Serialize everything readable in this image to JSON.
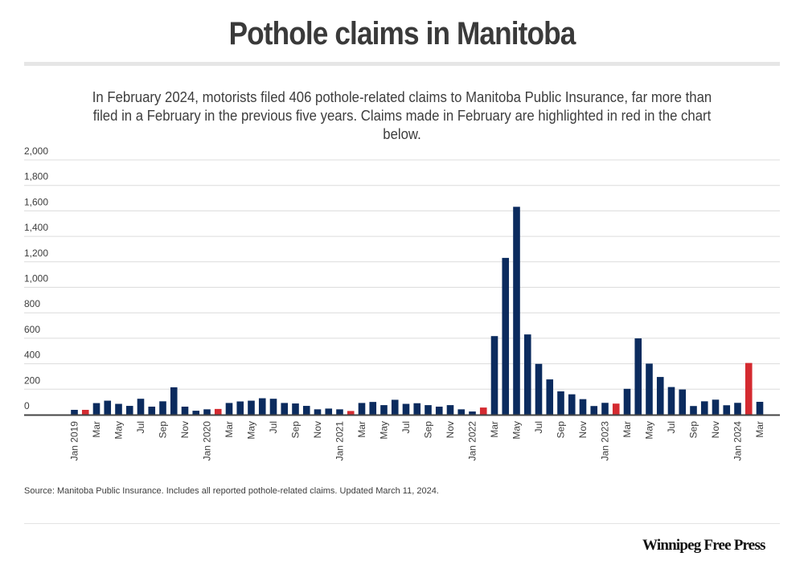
{
  "header": {
    "title": "Pothole claims in Manitoba",
    "subtitle_line1": "In February 2024, motorists filed 406 pothole-related claims to Manitoba Public Insurance, far more than",
    "subtitle_line2": "filed in a February in the previous five years. Claims made in February are highlighted in red in the chart below."
  },
  "footer": {
    "source": "Source: Manitoba Public Insurance. Includes all reported pothole-related claims. Updated March 11, 2024.",
    "brand": "Winnipeg Free Press"
  },
  "colors": {
    "default_bar": "#0b2b5e",
    "highlight_bar": "#d42a30",
    "gridline": "#dcdcdc",
    "axis": "#444444"
  },
  "chart_data": {
    "type": "bar",
    "title": "Pothole claims in Manitoba",
    "xlabel": "",
    "ylabel": "",
    "ylim": [
      0,
      2000
    ],
    "yticks": [
      0,
      200,
      400,
      600,
      800,
      1000,
      1200,
      1400,
      1600,
      1800,
      2000
    ],
    "ytick_labels": [
      "0",
      "200",
      "400",
      "600",
      "800",
      "1,000",
      "1,200",
      "1,400",
      "1,600",
      "1,800",
      "2,000"
    ],
    "grid": true,
    "legend": "none",
    "highlight_rule": "February months highlighted in red",
    "categories": [
      "Jan 2019",
      "Feb 2019",
      "Mar 2019",
      "Apr 2019",
      "May 2019",
      "Jun 2019",
      "Jul 2019",
      "Aug 2019",
      "Sep 2019",
      "Oct 2019",
      "Nov 2019",
      "Dec 2019",
      "Jan 2020",
      "Feb 2020",
      "Mar 2020",
      "Apr 2020",
      "May 2020",
      "Jun 2020",
      "Jul 2020",
      "Aug 2020",
      "Sep 2020",
      "Oct 2020",
      "Nov 2020",
      "Dec 2020",
      "Jan 2021",
      "Feb 2021",
      "Mar 2021",
      "Apr 2021",
      "May 2021",
      "Jun 2021",
      "Jul 2021",
      "Aug 2021",
      "Sep 2021",
      "Oct 2021",
      "Nov 2021",
      "Dec 2021",
      "Jan 2022",
      "Feb 2022",
      "Mar 2022",
      "Apr 2022",
      "May 2022",
      "Jun 2022",
      "Jul 2022",
      "Aug 2022",
      "Sep 2022",
      "Oct 2022",
      "Nov 2022",
      "Dec 2022",
      "Jan 2023",
      "Feb 2023",
      "Mar 2023",
      "Apr 2023",
      "May 2023",
      "Jun 2023",
      "Jul 2023",
      "Aug 2023",
      "Sep 2023",
      "Oct 2023",
      "Nov 2023",
      "Dec 2023",
      "Jan 2024",
      "Feb 2024",
      "Mar 2024"
    ],
    "values": [
      38,
      38,
      91,
      110,
      85,
      69,
      125,
      63,
      105,
      215,
      63,
      31,
      42,
      45,
      92,
      104,
      110,
      129,
      125,
      92,
      88,
      69,
      42,
      48,
      42,
      29,
      92,
      100,
      75,
      117,
      85,
      90,
      75,
      63,
      75,
      42,
      25,
      56,
      617,
      1231,
      1632,
      630,
      399,
      277,
      183,
      160,
      122,
      68,
      93,
      87,
      203,
      599,
      401,
      296,
      217,
      198,
      68,
      105,
      118,
      74,
      93,
      406,
      101
    ],
    "highlighted": [
      false,
      true,
      false,
      false,
      false,
      false,
      false,
      false,
      false,
      false,
      false,
      false,
      false,
      true,
      false,
      false,
      false,
      false,
      false,
      false,
      false,
      false,
      false,
      false,
      false,
      true,
      false,
      false,
      false,
      false,
      false,
      false,
      false,
      false,
      false,
      false,
      false,
      true,
      false,
      false,
      false,
      false,
      false,
      false,
      false,
      false,
      false,
      false,
      false,
      true,
      false,
      false,
      false,
      false,
      false,
      false,
      false,
      false,
      false,
      false,
      false,
      true,
      false
    ],
    "xtick_labels": [
      "Jan 2019",
      "",
      "Mar",
      "",
      "May",
      "",
      "Jul",
      "",
      "Sep",
      "",
      "Nov",
      "",
      "Jan 2020",
      "",
      "Mar",
      "",
      "May",
      "",
      "Jul",
      "",
      "Sep",
      "",
      "Nov",
      "",
      "Jan 2021",
      "",
      "Mar",
      "",
      "May",
      "",
      "Jul",
      "",
      "Sep",
      "",
      "Nov",
      "",
      "Jan 2022",
      "",
      "Mar",
      "",
      "May",
      "",
      "Jul",
      "",
      "Sep",
      "",
      "Nov",
      "",
      "Jan 2023",
      "",
      "Mar",
      "",
      "May",
      "",
      "Jul",
      "",
      "Sep",
      "",
      "Nov",
      "",
      "Jan 2024",
      "",
      "Mar"
    ]
  }
}
